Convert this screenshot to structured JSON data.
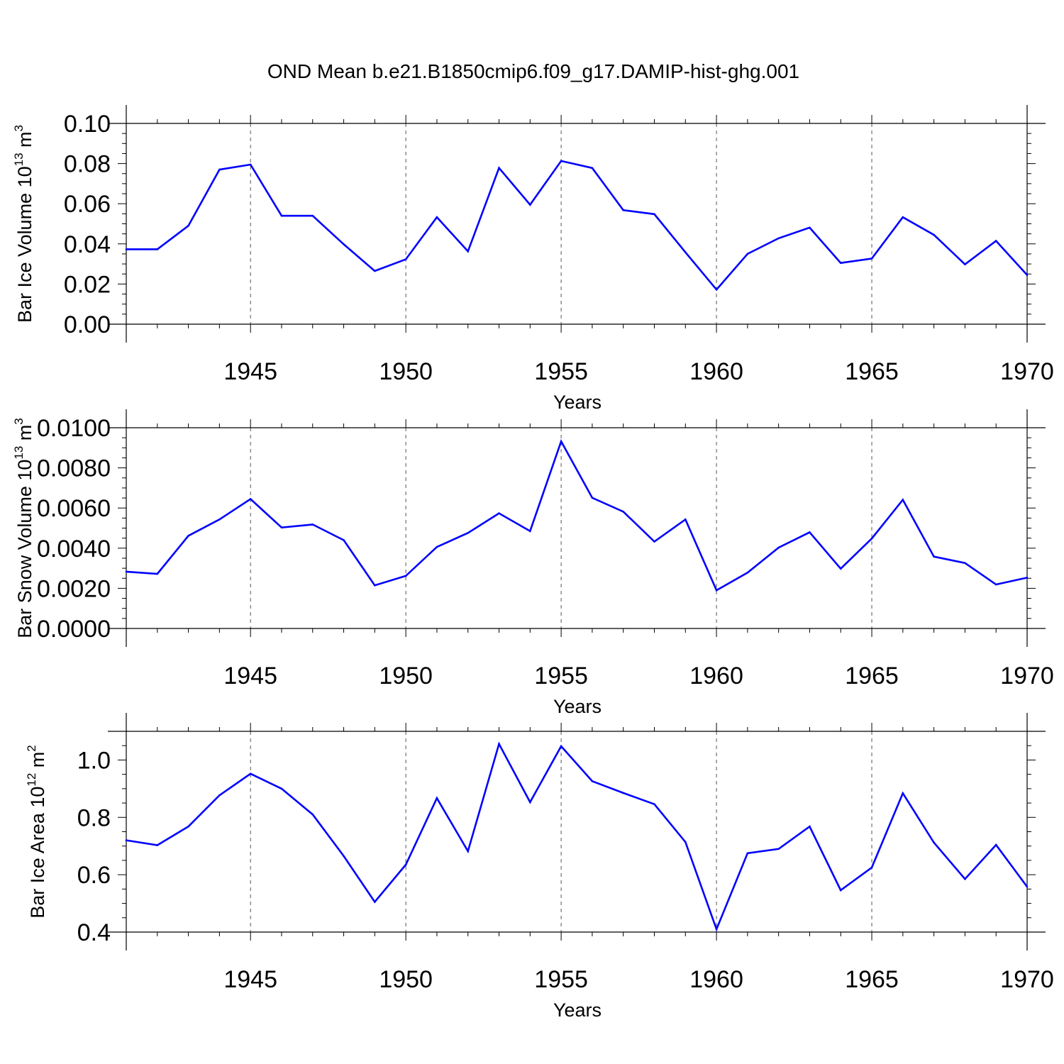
{
  "figure_title": "OND Mean b.e21.B1850cmip6.f09_g17.DAMIP-hist-ghg.001",
  "series_color": "#0000ff",
  "chart_data": [
    {
      "type": "line",
      "name": "Bar Ice Volume",
      "ylabel": {
        "text": "Bar Ice Volume 10",
        "exponent": "13",
        "unit": " m",
        "unit_exponent": "3"
      },
      "xlabel": "Years",
      "xlim": [
        1941,
        1970
      ],
      "x_ticks": [
        1945,
        1950,
        1955,
        1960,
        1965,
        1970
      ],
      "ylim": [
        0,
        0.1
      ],
      "y_ticks": [
        "0.00",
        "0.02",
        "0.04",
        "0.06",
        "0.08",
        "0.10"
      ],
      "grid": "vertical dashed at major x ticks",
      "x": [
        1941,
        1942,
        1943,
        1944,
        1945,
        1946,
        1947,
        1948,
        1949,
        1950,
        1951,
        1952,
        1953,
        1954,
        1955,
        1956,
        1957,
        1958,
        1959,
        1960,
        1961,
        1962,
        1963,
        1964,
        1965,
        1966,
        1967,
        1968,
        1969,
        1970
      ],
      "values": [
        0.0373,
        0.0373,
        0.049,
        0.077,
        0.0795,
        0.054,
        0.054,
        0.0398,
        0.0265,
        0.0323,
        0.0533,
        0.0363,
        0.0778,
        0.0595,
        0.0813,
        0.0778,
        0.0568,
        0.0548,
        0.0358,
        0.0172,
        0.035,
        0.0428,
        0.0481,
        0.0305,
        0.0327,
        0.0533,
        0.0445,
        0.0298,
        0.0415,
        0.0245
      ]
    },
    {
      "type": "line",
      "name": "Bar Snow Volume",
      "ylabel": {
        "text": "Bar Snow Volume 10",
        "exponent": "13",
        "unit": " m",
        "unit_exponent": "3"
      },
      "xlabel": "Years",
      "xlim": [
        1941,
        1970
      ],
      "x_ticks": [
        1945,
        1950,
        1955,
        1960,
        1965,
        1970
      ],
      "ylim": [
        0,
        0.01
      ],
      "y_ticks": [
        "0.0000",
        "0.0020",
        "0.0040",
        "0.0060",
        "0.0080",
        "0.0100"
      ],
      "grid": "vertical dashed at major x ticks",
      "x": [
        1941,
        1942,
        1943,
        1944,
        1945,
        1946,
        1947,
        1948,
        1949,
        1950,
        1951,
        1952,
        1953,
        1954,
        1955,
        1956,
        1957,
        1958,
        1959,
        1960,
        1961,
        1962,
        1963,
        1964,
        1965,
        1966,
        1967,
        1968,
        1969,
        1970
      ],
      "values": [
        0.00283,
        0.00272,
        0.00462,
        0.00543,
        0.00645,
        0.00503,
        0.00518,
        0.0044,
        0.00215,
        0.00262,
        0.00406,
        0.00476,
        0.00574,
        0.00485,
        0.00932,
        0.00651,
        0.00582,
        0.00433,
        0.00543,
        0.0019,
        0.00278,
        0.00403,
        0.00479,
        0.00298,
        0.00448,
        0.00641,
        0.00358,
        0.00326,
        0.00219,
        0.00253
      ]
    },
    {
      "type": "line",
      "name": "Bar Ice Area",
      "ylabel": {
        "text": "Bar Ice Area 10",
        "exponent": "12",
        "unit": " m",
        "unit_exponent": "2"
      },
      "xlabel": "Years",
      "xlim": [
        1941,
        1970
      ],
      "x_ticks": [
        1945,
        1950,
        1955,
        1960,
        1965,
        1970
      ],
      "ylim": [
        0.4,
        1.1
      ],
      "y_ticks": [
        "0.4",
        "0.6",
        "0.8",
        "1.0"
      ],
      "grid": "vertical dashed at major x ticks",
      "x": [
        1941,
        1942,
        1943,
        1944,
        1945,
        1946,
        1947,
        1948,
        1949,
        1950,
        1951,
        1952,
        1953,
        1954,
        1955,
        1956,
        1957,
        1958,
        1959,
        1960,
        1961,
        1962,
        1963,
        1964,
        1965,
        1966,
        1967,
        1968,
        1969,
        1970
      ],
      "values": [
        0.72,
        0.703,
        0.768,
        0.877,
        0.952,
        0.9,
        0.81,
        0.665,
        0.505,
        0.635,
        0.867,
        0.682,
        1.056,
        0.853,
        1.048,
        0.926,
        0.885,
        0.846,
        0.714,
        0.41,
        0.675,
        0.69,
        0.768,
        0.546,
        0.625,
        0.884,
        0.712,
        0.585,
        0.704,
        0.558
      ]
    }
  ]
}
